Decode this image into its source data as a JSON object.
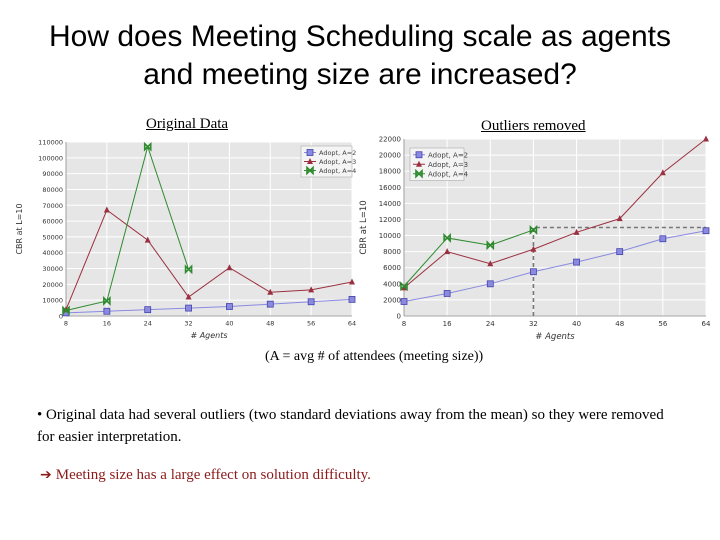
{
  "slide": {
    "title": "How does Meeting Scheduling scale as agents and meeting size are increased?",
    "label_left": "Original Data",
    "label_right": "Outliers removed",
    "caption": "(A = avg # of attendees (meeting size))",
    "bullet": "• Original data had several outliers (two standard deviations away from the mean) so they were removed for easier interpretation.",
    "conclusion_arrow": "➔",
    "conclusion": "Meeting size has a large effect on solution difficulty."
  },
  "colors": {
    "plot_bg": "#e6e6e6",
    "grid": "#ffffff",
    "a2": "#8a8ae0",
    "a3": "#9b3040",
    "a4": "#2e8b2e",
    "conclusion": "#8b1a1a"
  },
  "chart_data": [
    {
      "type": "line",
      "xlabel": "# Agents",
      "ylabel": "CBR at L=10",
      "x": [
        8,
        16,
        24,
        32,
        40,
        48,
        56,
        64
      ],
      "xlim": [
        8,
        64
      ],
      "ylim": [
        0,
        110000
      ],
      "yticks": [
        0,
        10000,
        20000,
        30000,
        40000,
        50000,
        60000,
        70000,
        80000,
        90000,
        100000,
        110000
      ],
      "grid": true,
      "legend_position": "top-right",
      "series": [
        {
          "name": "Adopt, A=2",
          "marker": "square",
          "color": "#8a8ae0",
          "values": [
            2000,
            3000,
            4000,
            5000,
            6000,
            7500,
            9000,
            10500
          ]
        },
        {
          "name": "Adopt, A=3",
          "marker": "triangle",
          "color": "#9b3040",
          "values": [
            4000,
            67000,
            48000,
            12000,
            30500,
            15000,
            16500,
            21500
          ]
        },
        {
          "name": "Adopt, A=4",
          "marker": "bowtie",
          "color": "#2e8b2e",
          "values": [
            3500,
            9500,
            107000,
            29500,
            null,
            null,
            null,
            null
          ]
        }
      ]
    },
    {
      "type": "line",
      "xlabel": "# Agents",
      "ylabel": "CBR at L=10",
      "x": [
        8,
        16,
        24,
        32,
        40,
        48,
        56,
        64
      ],
      "xlim": [
        8,
        64
      ],
      "ylim": [
        0,
        22000
      ],
      "yticks": [
        0,
        2000,
        4000,
        6000,
        8000,
        10000,
        12000,
        14000,
        16000,
        18000,
        20000,
        22000
      ],
      "grid": true,
      "legend_position": "top-left",
      "reference_point": {
        "x": 32,
        "y": 11000
      },
      "series": [
        {
          "name": "Adopt, A=2",
          "marker": "square",
          "color": "#8a8ae0",
          "values": [
            1800,
            2800,
            4000,
            5500,
            6700,
            8000,
            9600,
            10600
          ]
        },
        {
          "name": "Adopt, A=3",
          "marker": "triangle",
          "color": "#9b3040",
          "values": [
            3500,
            8000,
            6500,
            8300,
            10400,
            12100,
            17800,
            22000
          ]
        },
        {
          "name": "Adopt, A=4",
          "marker": "bowtie",
          "color": "#2e8b2e",
          "values": [
            3700,
            9700,
            8800,
            10700,
            null,
            null,
            null,
            null
          ]
        }
      ]
    }
  ]
}
